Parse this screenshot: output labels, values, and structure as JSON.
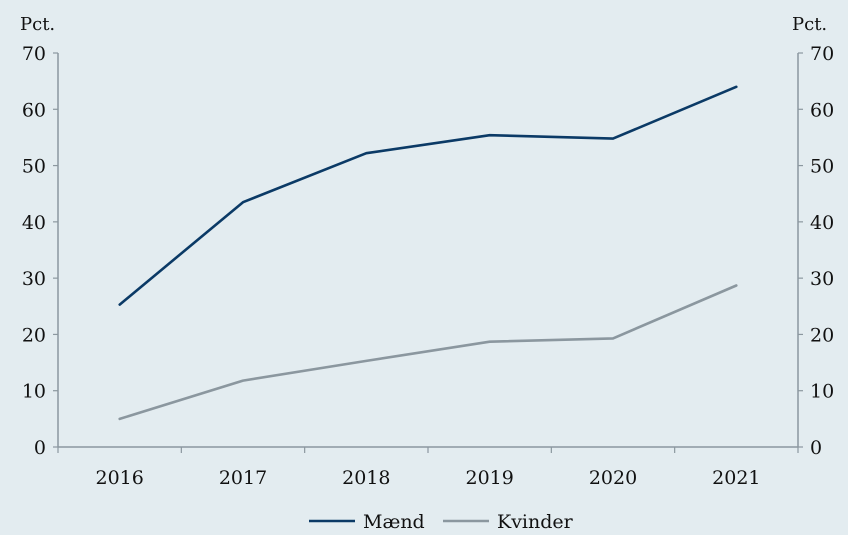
{
  "chart_data": {
    "type": "line",
    "title": "",
    "xlabel": "",
    "ylabel_left": "Pct.",
    "ylabel_right": "Pct.",
    "ylim": [
      0,
      70
    ],
    "yticks": [
      0,
      10,
      20,
      30,
      40,
      50,
      60,
      70
    ],
    "x": [
      "2016",
      "2017",
      "2018",
      "2019",
      "2020",
      "2021"
    ],
    "grid": false,
    "legend_position": "bottom",
    "series": [
      {
        "name": "Mænd",
        "color": "#0b3a66",
        "values": [
          25.3,
          43.5,
          52.2,
          55.4,
          54.8,
          64.0
        ]
      },
      {
        "name": "Kvinder",
        "color": "#8b979f",
        "values": [
          5.0,
          11.8,
          15.3,
          18.7,
          19.3,
          28.7
        ]
      }
    ]
  },
  "colors": {
    "background": "#e3ecf0",
    "axis": "#8b979f"
  }
}
